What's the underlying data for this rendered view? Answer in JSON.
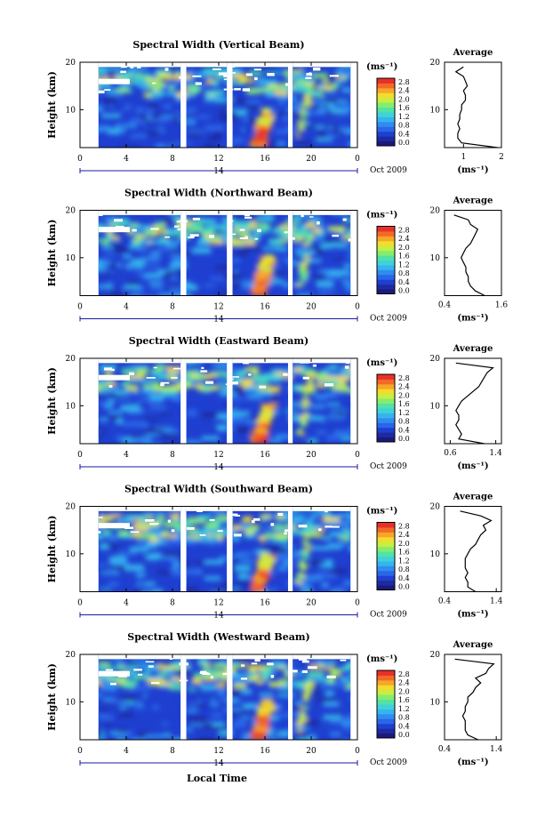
{
  "colors": {
    "colorbar": [
      "#1a1a7a",
      "#1e2aa0",
      "#1f3fd0",
      "#2a66e8",
      "#2f8cf0",
      "#36b4ee",
      "#3fd2d8",
      "#52e2a6",
      "#86ec6e",
      "#c7ee44",
      "#f2dc2c",
      "#f8a62a",
      "#f26a26",
      "#e8302a"
    ],
    "background": "#ffffff",
    "axis": "#000000",
    "profile_line": "#000000"
  },
  "xlabel": "Local Time",
  "date_label": "Oct 2009",
  "date_tick": "14",
  "chart_data": [
    {
      "type": "heatmap",
      "title": "Spectral Width (Vertical Beam)",
      "ylabel": "Height (km)",
      "xlim": [
        0,
        24
      ],
      "ylim": [
        2,
        20
      ],
      "x_ticks": [
        "0",
        "4",
        "8",
        "12",
        "16",
        "20",
        "0"
      ],
      "y_ticks": [
        "10",
        "20"
      ],
      "colorbar": {
        "unit": "(ms⁻¹)",
        "ticks": [
          "2.8",
          "2.4",
          "2.0",
          "1.6",
          "1.2",
          "0.8",
          "0.4",
          "0.0"
        ]
      },
      "profile": {
        "title": "Average",
        "xlabel": "(ms⁻¹)",
        "xlim": [
          0.5,
          2.0
        ],
        "x_ticks": [
          "1",
          "2"
        ],
        "y_ticks": [
          "10",
          "20"
        ],
        "heights": [
          2,
          3,
          4,
          5,
          6,
          7,
          8,
          9,
          10,
          11,
          12,
          13,
          14,
          15,
          16,
          17,
          18,
          19
        ],
        "values": [
          1.9,
          0.95,
          0.85,
          0.85,
          0.9,
          0.85,
          0.9,
          0.9,
          0.95,
          0.95,
          1.05,
          1.05,
          1.0,
          1.1,
          1.05,
          1.0,
          0.8,
          1.0
        ]
      }
    },
    {
      "type": "heatmap",
      "title": "Spectral Width (Northward Beam)",
      "ylabel": "Height (km)",
      "xlim": [
        0,
        24
      ],
      "ylim": [
        2,
        20
      ],
      "x_ticks": [
        "0",
        "4",
        "8",
        "12",
        "16",
        "20",
        "0"
      ],
      "y_ticks": [
        "10",
        "20"
      ],
      "colorbar": {
        "unit": "(ms⁻¹)",
        "ticks": [
          "2.8",
          "2.4",
          "2.0",
          "1.6",
          "1.2",
          "0.8",
          "0.4",
          "0.0"
        ]
      },
      "profile": {
        "title": "Average",
        "xlabel": "(ms⁻¹)",
        "xlim": [
          0.4,
          1.6
        ],
        "x_ticks": [
          "0.4",
          "1.6"
        ],
        "y_ticks": [
          "10",
          "20"
        ],
        "heights": [
          2,
          3,
          4,
          5,
          6,
          7,
          8,
          9,
          10,
          11,
          12,
          13,
          14,
          15,
          16,
          17,
          18,
          19
        ],
        "values": [
          1.25,
          1.05,
          0.95,
          0.9,
          0.9,
          0.85,
          0.85,
          0.8,
          0.75,
          0.8,
          0.85,
          0.95,
          1.0,
          1.05,
          1.1,
          0.95,
          0.9,
          0.6
        ]
      }
    },
    {
      "type": "heatmap",
      "title": "Spectral Width (Eastward Beam)",
      "ylabel": "Height (km)",
      "xlim": [
        0,
        24
      ],
      "ylim": [
        2,
        20
      ],
      "x_ticks": [
        "0",
        "4",
        "8",
        "12",
        "16",
        "20",
        "0"
      ],
      "y_ticks": [
        "10",
        "20"
      ],
      "colorbar": {
        "unit": "(ms⁻¹)",
        "ticks": [
          "2.8",
          "2.4",
          "2.0",
          "1.6",
          "1.2",
          "0.8",
          "0.4",
          "0.0"
        ]
      },
      "profile": {
        "title": "Average",
        "xlabel": "(ms⁻¹)",
        "xlim": [
          0.5,
          1.5
        ],
        "x_ticks": [
          "0.6",
          "1.4"
        ],
        "y_ticks": [
          "10",
          "20"
        ],
        "heights": [
          2,
          3,
          4,
          5,
          6,
          7,
          8,
          9,
          10,
          11,
          12,
          13,
          14,
          15,
          16,
          17,
          18,
          19
        ],
        "values": [
          1.2,
          0.75,
          0.8,
          0.75,
          0.7,
          0.75,
          0.75,
          0.7,
          0.75,
          0.8,
          0.9,
          1.0,
          1.1,
          1.15,
          1.2,
          1.25,
          1.35,
          0.7
        ]
      }
    },
    {
      "type": "heatmap",
      "title": "Spectral Width (Southward Beam)",
      "ylabel": "Height (km)",
      "xlim": [
        0,
        24
      ],
      "ylim": [
        2,
        20
      ],
      "x_ticks": [
        "0",
        "4",
        "8",
        "12",
        "16",
        "20",
        "0"
      ],
      "y_ticks": [
        "10",
        "20"
      ],
      "colorbar": {
        "unit": "(ms⁻¹)",
        "ticks": [
          "2.8",
          "2.4",
          "2.0",
          "1.6",
          "1.2",
          "0.8",
          "0.4",
          "0.0"
        ]
      },
      "profile": {
        "title": "Average",
        "xlabel": "(ms⁻¹)",
        "xlim": [
          0.4,
          1.5
        ],
        "x_ticks": [
          "0.4",
          "1.4"
        ],
        "y_ticks": [
          "10",
          "20"
        ],
        "heights": [
          2,
          3,
          4,
          5,
          6,
          7,
          8,
          9,
          10,
          11,
          12,
          13,
          14,
          15,
          16,
          17,
          18,
          19
        ],
        "values": [
          1.0,
          0.85,
          0.85,
          0.8,
          0.85,
          0.8,
          0.8,
          0.8,
          0.85,
          0.9,
          1.0,
          1.05,
          1.1,
          1.2,
          1.15,
          1.3,
          1.1,
          0.7
        ]
      }
    },
    {
      "type": "heatmap",
      "title": "Spectral Width (Westward Beam)",
      "ylabel": "Height (km)",
      "xlim": [
        0,
        24
      ],
      "ylim": [
        2,
        20
      ],
      "x_ticks": [
        "0",
        "4",
        "8",
        "12",
        "16",
        "20",
        "0"
      ],
      "y_ticks": [
        "10",
        "20"
      ],
      "colorbar": {
        "unit": "(ms⁻¹)",
        "ticks": [
          "2.8",
          "2.4",
          "2.0",
          "1.6",
          "1.2",
          "0.8",
          "0.4",
          "0.0"
        ]
      },
      "profile": {
        "title": "Average",
        "xlabel": "(ms⁻¹)",
        "xlim": [
          0.4,
          1.5
        ],
        "x_ticks": [
          "0.4",
          "1.4"
        ],
        "y_ticks": [
          "10",
          "20"
        ],
        "heights": [
          2,
          3,
          4,
          5,
          6,
          7,
          8,
          9,
          10,
          11,
          12,
          13,
          14,
          15,
          16,
          17,
          18,
          19
        ],
        "values": [
          1.05,
          0.85,
          0.8,
          0.8,
          0.8,
          0.75,
          0.8,
          0.8,
          0.85,
          0.85,
          0.95,
          1.0,
          1.1,
          1.0,
          1.2,
          1.25,
          1.35,
          0.6
        ]
      }
    }
  ]
}
